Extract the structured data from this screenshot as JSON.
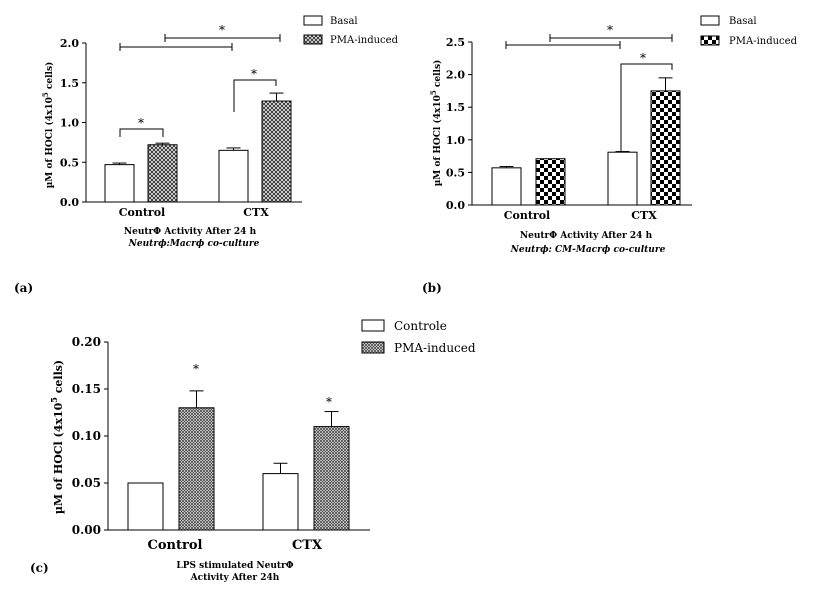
{
  "patterns": {
    "basal": "#ffffff",
    "pma_a": "crosshatch-dense",
    "pma_b": "checkerboard",
    "pma_c": "crosshatch-fine"
  },
  "chart_data": [
    {
      "panel": "(a)",
      "type": "bar",
      "categories": [
        "Control",
        "CTX"
      ],
      "series": [
        {
          "name": "Basal",
          "values": [
            0.47,
            0.65
          ],
          "errors": [
            0.02,
            0.03
          ]
        },
        {
          "name": "PMA-induced",
          "values": [
            0.72,
            1.27
          ],
          "errors": [
            0.02,
            0.1
          ]
        }
      ],
      "ylabel": "µM of HOCl (4x10",
      "ylabel_sup": "5",
      "ylabel_end": " cells)",
      "ylim": [
        0,
        2.0
      ],
      "yticks": [
        "0.0",
        "0.5",
        "1.0",
        "1.5",
        "2.0"
      ],
      "caption_line1": "NeutrΦ  Activity After 24 h",
      "caption_line2": "Neutrϕ:Macrϕ  co-culture",
      "legend_position": "top-right",
      "significance_label": "*"
    },
    {
      "panel": "(b)",
      "type": "bar",
      "categories": [
        "Control",
        "CTX"
      ],
      "series": [
        {
          "name": "Basal",
          "values": [
            0.57,
            0.81
          ],
          "errors": [
            0.02,
            0.01
          ]
        },
        {
          "name": "PMA-induced",
          "values": [
            0.71,
            1.75
          ],
          "errors": [
            0.0,
            0.2
          ]
        }
      ],
      "ylabel": "µM of HOCl (4x10",
      "ylabel_sup": "5",
      "ylabel_end": " cells)",
      "ylim": [
        0,
        2.5
      ],
      "yticks": [
        "0.0",
        "0.5",
        "1.0",
        "1.5",
        "2.0",
        "2.5"
      ],
      "caption_line1": "NeutrΦ  Activity After 24 h",
      "caption_line2": "Neutrϕ: CM-Macrϕ  co-culture",
      "legend_position": "top-right",
      "significance_label": "*"
    },
    {
      "panel": "(c)",
      "type": "bar",
      "categories": [
        "Control",
        "CTX"
      ],
      "series": [
        {
          "name": "Controle",
          "values": [
            0.05,
            0.06
          ],
          "errors": [
            0.0,
            0.011
          ]
        },
        {
          "name": "PMA-induced",
          "values": [
            0.13,
            0.11
          ],
          "errors": [
            0.018,
            0.016
          ]
        }
      ],
      "ylabel": "µM of HOCl (4x10",
      "ylabel_sup": "5",
      "ylabel_end": " cells)",
      "ylim": [
        0,
        0.2
      ],
      "yticks": [
        "0.00",
        "0.05",
        "0.10",
        "0.15",
        "0.20"
      ],
      "caption_line1": "LPS stimulated NeutrΦ",
      "caption_line2": "Activity After 24h",
      "legend_position": "top-right",
      "significance_label": "*"
    }
  ]
}
